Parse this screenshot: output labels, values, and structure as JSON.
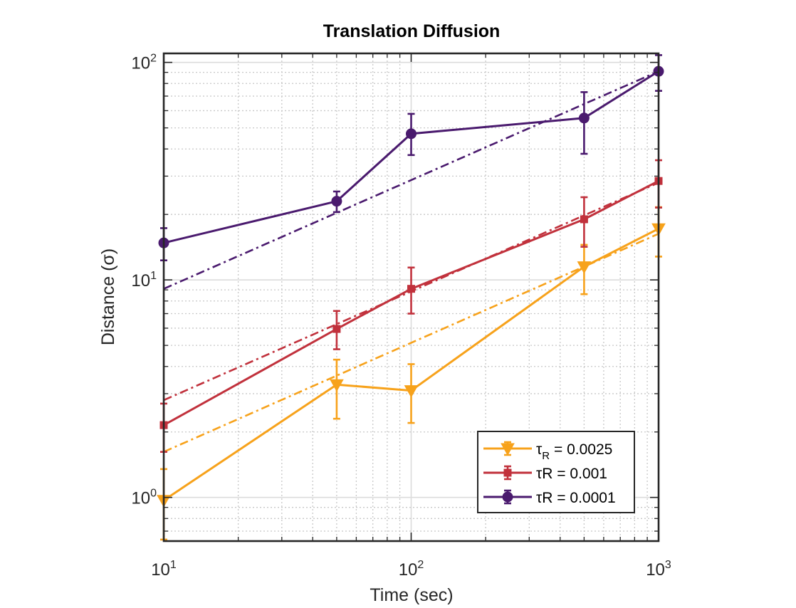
{
  "chart_data": {
    "type": "line",
    "title": "Translation Diffusion",
    "xlabel": "Time (sec)",
    "ylabel": "Distance (σ)",
    "xscale": "log",
    "yscale": "log",
    "xlim": [
      10,
      1000
    ],
    "ylim": [
      0.63,
      110
    ],
    "x_ticks": [
      "10^1",
      "10^2",
      "10^3"
    ],
    "y_ticks": [
      "10^0",
      "10^1",
      "10^2"
    ],
    "grid": "major and minor",
    "legend_position": "bottom-right",
    "x": [
      10,
      50,
      100,
      500,
      1000
    ],
    "series": [
      {
        "name": "τR = 0.0025",
        "legend_main": "τ",
        "legend_sub": "R",
        "legend_rest": " = 0.0025",
        "color": "#F7A21B",
        "marker": "triangle-down",
        "values": [
          0.97,
          3.3,
          3.1,
          11.5,
          17.2
        ],
        "err_low": [
          0.64,
          2.3,
          2.2,
          8.6,
          12.8
        ],
        "err_high": [
          1.35,
          4.3,
          4.1,
          14.5,
          21.6
        ],
        "fit": [
          1.62,
          16.3
        ]
      },
      {
        "name": "τR = 0.001",
        "legend_main": "τR = 0.001",
        "legend_sub": "",
        "legend_rest": "",
        "color": "#C1313C",
        "marker": "square",
        "values": [
          2.15,
          5.95,
          9.1,
          19.0,
          28.5
        ],
        "err_low": [
          1.62,
          4.8,
          7.0,
          14.2,
          21.5
        ],
        "err_high": [
          2.7,
          7.2,
          11.4,
          24.0,
          35.5
        ],
        "fit": [
          2.8,
          28.0
        ]
      },
      {
        "name": "τR = 0.0001",
        "legend_main": "τR = 0.0001",
        "legend_sub": "",
        "legend_rest": "",
        "color": "#4A1A6E",
        "marker": "circle",
        "values": [
          14.8,
          23.0,
          47.0,
          55.5,
          91.0
        ],
        "err_low": [
          12.3,
          20.5,
          37.5,
          38.0,
          74.0
        ],
        "err_high": [
          17.3,
          25.5,
          58.0,
          73.0,
          108.0
        ],
        "fit": [
          9.1,
          91.0
        ]
      }
    ]
  }
}
